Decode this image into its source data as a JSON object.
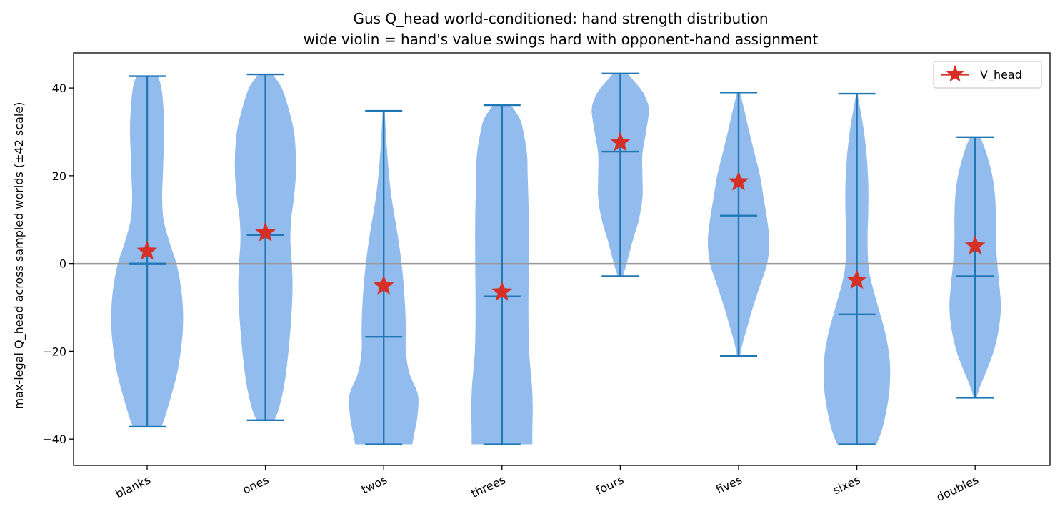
{
  "chart_data": {
    "type": "violin",
    "title": "Gus Q_head world-conditioned: hand strength distribution",
    "subtitle": "wide violin = hand's value swings hard with opponent-hand assignment",
    "xlabel": "",
    "ylabel": "max-legal Q_head across sampled worlds (±42 scale)",
    "ylim": [
      -46,
      48
    ],
    "yticks": [
      -40,
      -20,
      0,
      20,
      40
    ],
    "ytick_labels": [
      "−40",
      "−20",
      "0",
      "20",
      "40"
    ],
    "reference_line_y": 0,
    "legend": {
      "position": "top-right",
      "entries": [
        {
          "label": "V_head",
          "marker": "star",
          "color": "#d62f26"
        }
      ]
    },
    "colors": {
      "violin_fill": "#92bcee",
      "violin_lines": "#1f77b4",
      "marker": "#d62f26",
      "zero_line": "#999999"
    },
    "categories": [
      "blanks",
      "ones",
      "twos",
      "threes",
      "fours",
      "fives",
      "sixes",
      "doubles"
    ],
    "series": [
      {
        "name": "V_head",
        "violins": [
          {
            "category": "blanks",
            "min": -37.2,
            "max": 42.7,
            "median": 0,
            "v_head": 2.8,
            "profile": [
              [
                -37.2,
                0.4
              ],
              [
                -35,
                0.5
              ],
              [
                -30,
                0.68
              ],
              [
                -25,
                0.84
              ],
              [
                -20,
                0.94
              ],
              [
                -15,
                1.0
              ],
              [
                -10,
                1.0
              ],
              [
                -5,
                0.94
              ],
              [
                0,
                0.82
              ],
              [
                5,
                0.62
              ],
              [
                10,
                0.46
              ],
              [
                15,
                0.42
              ],
              [
                20,
                0.44
              ],
              [
                25,
                0.46
              ],
              [
                30,
                0.48
              ],
              [
                35,
                0.46
              ],
              [
                40,
                0.4
              ],
              [
                42.7,
                0.3
              ]
            ]
          },
          {
            "category": "ones",
            "min": -35.7,
            "max": 43.1,
            "median": 6.5,
            "v_head": 7.0,
            "profile": [
              [
                -35.7,
                0.25
              ],
              [
                -33,
                0.38
              ],
              [
                -28,
                0.52
              ],
              [
                -22,
                0.62
              ],
              [
                -15,
                0.7
              ],
              [
                -10,
                0.74
              ],
              [
                -5,
                0.76
              ],
              [
                0,
                0.74
              ],
              [
                5,
                0.7
              ],
              [
                10,
                0.72
              ],
              [
                15,
                0.8
              ],
              [
                20,
                0.85
              ],
              [
                25,
                0.85
              ],
              [
                30,
                0.8
              ],
              [
                35,
                0.66
              ],
              [
                40,
                0.46
              ],
              [
                43.1,
                0.2
              ]
            ]
          },
          {
            "category": "twos",
            "min": -41.2,
            "max": 34.8,
            "median": -16.7,
            "v_head": -5.1,
            "profile": [
              [
                -41.2,
                0.8
              ],
              [
                -39,
                0.85
              ],
              [
                -35,
                0.94
              ],
              [
                -30,
                0.96
              ],
              [
                -25,
                0.72
              ],
              [
                -20,
                0.62
              ],
              [
                -15,
                0.62
              ],
              [
                -10,
                0.6
              ],
              [
                -5,
                0.56
              ],
              [
                0,
                0.5
              ],
              [
                5,
                0.42
              ],
              [
                10,
                0.32
              ],
              [
                15,
                0.22
              ],
              [
                20,
                0.15
              ],
              [
                25,
                0.1
              ],
              [
                30,
                0.06
              ],
              [
                34.8,
                0.03
              ]
            ]
          },
          {
            "category": "threes",
            "min": -41.2,
            "max": 36.1,
            "median": -7.5,
            "v_head": -6.5,
            "profile": [
              [
                -41.2,
                0.85
              ],
              [
                -38,
                0.85
              ],
              [
                -33,
                0.86
              ],
              [
                -28,
                0.84
              ],
              [
                -20,
                0.76
              ],
              [
                -10,
                0.74
              ],
              [
                0,
                0.75
              ],
              [
                10,
                0.75
              ],
              [
                20,
                0.72
              ],
              [
                25,
                0.7
              ],
              [
                30,
                0.6
              ],
              [
                33,
                0.5
              ],
              [
                36.1,
                0.25
              ]
            ]
          },
          {
            "category": "fours",
            "min": -2.9,
            "max": 43.3,
            "median": 25.5,
            "v_head": 27.6,
            "profile": [
              [
                -2.9,
                0.07
              ],
              [
                0,
                0.18
              ],
              [
                5,
                0.34
              ],
              [
                10,
                0.52
              ],
              [
                15,
                0.62
              ],
              [
                20,
                0.62
              ],
              [
                25,
                0.62
              ],
              [
                30,
                0.72
              ],
              [
                35,
                0.8
              ],
              [
                38,
                0.7
              ],
              [
                40,
                0.55
              ],
              [
                43.3,
                0.2
              ]
            ]
          },
          {
            "category": "fives",
            "min": -21.1,
            "max": 39.0,
            "median": 10.9,
            "v_head": 18.6,
            "profile": [
              [
                -21.1,
                0.04
              ],
              [
                -18,
                0.12
              ],
              [
                -14,
                0.26
              ],
              [
                -10,
                0.4
              ],
              [
                -5,
                0.6
              ],
              [
                0,
                0.8
              ],
              [
                5,
                0.86
              ],
              [
                10,
                0.8
              ],
              [
                15,
                0.7
              ],
              [
                20,
                0.6
              ],
              [
                25,
                0.45
              ],
              [
                30,
                0.3
              ],
              [
                35,
                0.16
              ],
              [
                39.0,
                0.04
              ]
            ]
          },
          {
            "category": "sixes",
            "min": -41.2,
            "max": 38.7,
            "median": -11.6,
            "v_head": -3.8,
            "profile": [
              [
                -41.2,
                0.55
              ],
              [
                -38,
                0.7
              ],
              [
                -33,
                0.84
              ],
              [
                -28,
                0.92
              ],
              [
                -22,
                0.92
              ],
              [
                -16,
                0.8
              ],
              [
                -10,
                0.6
              ],
              [
                -4,
                0.4
              ],
              [
                0,
                0.32
              ],
              [
                6,
                0.3
              ],
              [
                12,
                0.32
              ],
              [
                18,
                0.32
              ],
              [
                24,
                0.28
              ],
              [
                30,
                0.2
              ],
              [
                35,
                0.1
              ],
              [
                38.7,
                0.02
              ]
            ]
          },
          {
            "category": "doubles",
            "min": -30.6,
            "max": 28.8,
            "median": -2.9,
            "v_head": 4.0,
            "profile": [
              [
                -30.6,
                0.04
              ],
              [
                -28,
                0.14
              ],
              [
                -24,
                0.34
              ],
              [
                -20,
                0.52
              ],
              [
                -15,
                0.66
              ],
              [
                -10,
                0.72
              ],
              [
                -5,
                0.68
              ],
              [
                0,
                0.62
              ],
              [
                5,
                0.58
              ],
              [
                10,
                0.58
              ],
              [
                15,
                0.56
              ],
              [
                20,
                0.48
              ],
              [
                25,
                0.32
              ],
              [
                28.8,
                0.15
              ]
            ]
          }
        ]
      }
    ]
  }
}
